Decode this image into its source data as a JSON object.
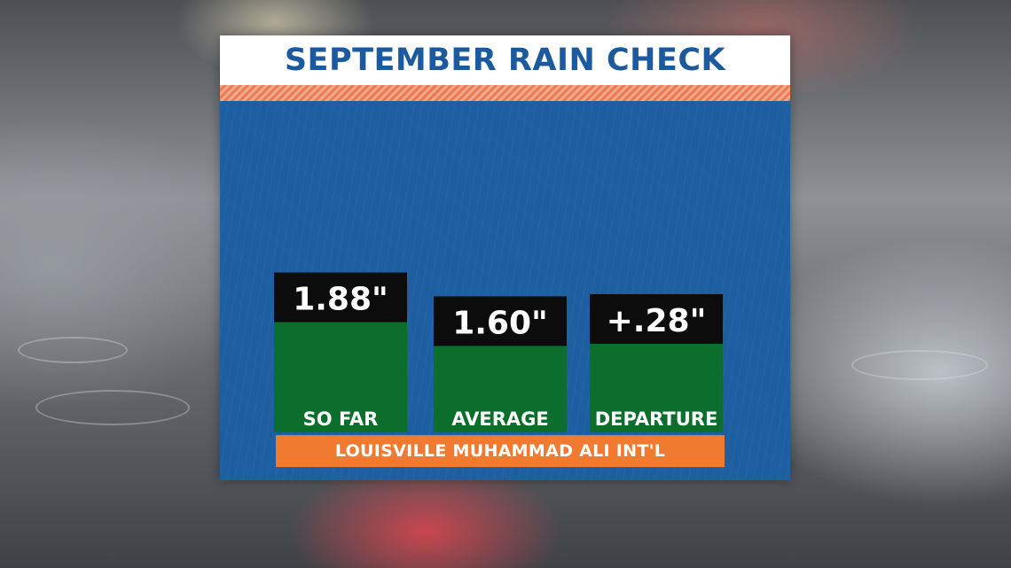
{
  "chart_data": {
    "type": "bar",
    "title": "SEPTEMBER RAIN CHECK",
    "categories": [
      "SO FAR",
      "AVERAGE",
      "DEPARTURE"
    ],
    "values": [
      1.88,
      1.6,
      0.28
    ],
    "value_labels": [
      "1.88\"",
      "1.60\"",
      "+.28\""
    ],
    "units": "inches",
    "location": "LOUISVILLE MUHAMMAD ALI INT'L",
    "colors": {
      "bar": "#0b6e2c",
      "label_box": "#0c0c0c",
      "panel": "#1d5fa0",
      "title": "#1c5a9f",
      "location_bar": "#f07a30"
    }
  }
}
